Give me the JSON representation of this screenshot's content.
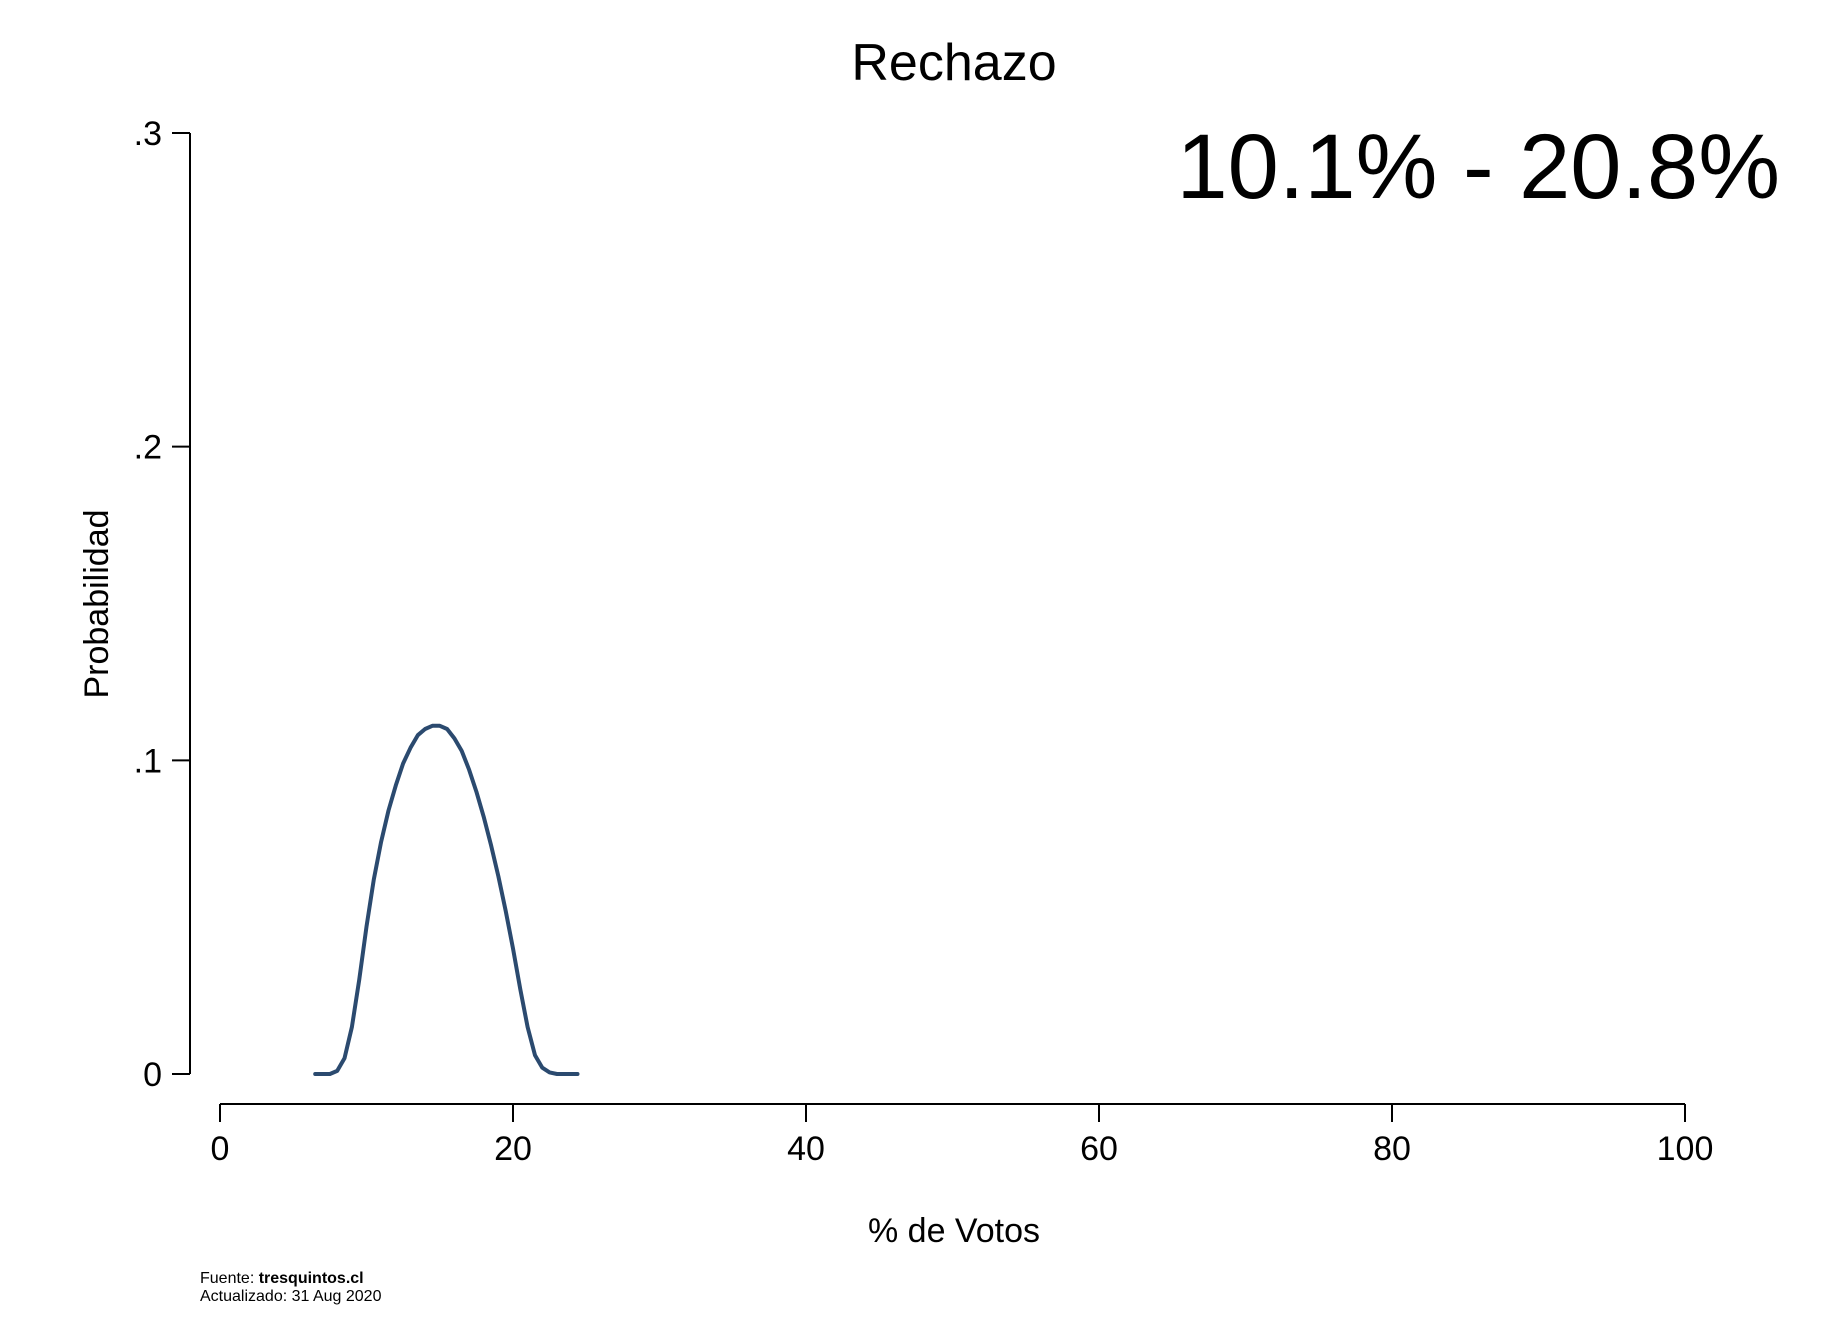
{
  "chart_data": {
    "type": "line",
    "title": "Rechazo",
    "xlabel": "% de Votos",
    "ylabel": "Probabilidad",
    "xlim": [
      0,
      100
    ],
    "ylim": [
      0,
      0.3
    ],
    "x_ticks": [
      0,
      20,
      40,
      60,
      80,
      100
    ],
    "x_tick_labels": [
      "0",
      "20",
      "40",
      "60",
      "80",
      "100"
    ],
    "y_ticks": [
      0,
      0.1,
      0.2,
      0.3
    ],
    "y_tick_labels": [
      "0",
      ".1",
      ".2",
      ".3"
    ],
    "grid": false,
    "annotation": "10.1% - 20.8%",
    "annotation_color": "#e0e0e0",
    "series_color": "#2b4a6f",
    "series": [
      {
        "x": [
          6.5,
          7.0,
          7.5,
          8.0,
          8.5,
          9.0,
          9.5,
          10.0,
          10.5,
          11.0,
          11.5,
          12.0,
          12.5,
          13.0,
          13.5,
          14.0,
          14.5,
          15.0,
          15.5,
          16.0,
          16.5,
          17.0,
          17.5,
          18.0,
          18.5,
          19.0,
          19.5,
          20.0,
          20.5,
          21.0,
          21.5,
          22.0,
          22.5,
          23.0,
          23.5,
          24.0,
          24.4
        ],
        "y": [
          0,
          0,
          0,
          0.001,
          0.005,
          0.015,
          0.03,
          0.047,
          0.062,
          0.074,
          0.084,
          0.092,
          0.099,
          0.104,
          0.108,
          0.11,
          0.111,
          0.111,
          0.11,
          0.107,
          0.103,
          0.097,
          0.09,
          0.082,
          0.073,
          0.063,
          0.052,
          0.04,
          0.027,
          0.015,
          0.006,
          0.002,
          0.0005,
          0,
          0,
          0,
          0
        ]
      }
    ]
  },
  "footer": {
    "source_label": "Fuente: ",
    "source_value": "tresquintos.cl",
    "updated": "Actualizado: 31 Aug 2020"
  }
}
